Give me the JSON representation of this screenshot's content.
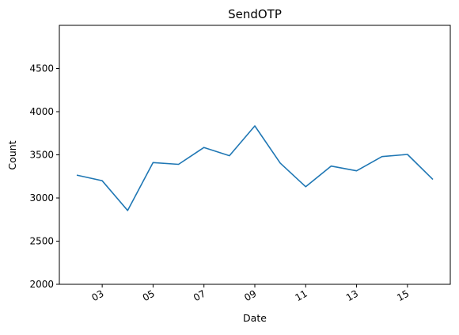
{
  "chart_data": {
    "type": "line",
    "title": "SendOTP",
    "xlabel": "Date",
    "ylabel": "Count",
    "x": [
      "02",
      "03",
      "04",
      "05",
      "06",
      "07",
      "08",
      "09",
      "10",
      "11",
      "12",
      "13",
      "14",
      "15",
      "16"
    ],
    "series": [
      {
        "values": [
          3265,
          3200,
          2855,
          3410,
          3390,
          3585,
          3490,
          3835,
          3405,
          3130,
          3370,
          3315,
          3480,
          3505,
          3215
        ],
        "color": "#1f77b4"
      }
    ],
    "ylim": [
      2000,
      5000
    ],
    "yticks": [
      2000,
      2500,
      3000,
      3500,
      4000,
      4500
    ],
    "xticks": [
      "03",
      "05",
      "07",
      "09",
      "11",
      "13",
      "15"
    ],
    "grid": false,
    "legend": "none"
  }
}
